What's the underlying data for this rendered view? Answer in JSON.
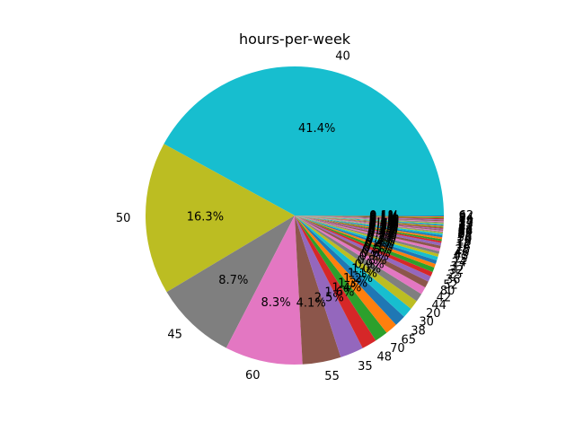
{
  "chart_data": {
    "type": "pie",
    "title": "hours-per-week",
    "start_angle_deg": 0,
    "direction": "counterclockwise",
    "slices": [
      {
        "label": "40",
        "pct": 41.4,
        "pct_label": "41.4%"
      },
      {
        "label": "50",
        "pct": 16.3,
        "pct_label": "16.3%"
      },
      {
        "label": "45",
        "pct": 8.7,
        "pct_label": "8.7%"
      },
      {
        "label": "60",
        "pct": 8.3,
        "pct_label": "8.3%"
      },
      {
        "label": "55",
        "pct": 4.1,
        "pct_label": "4.1%"
      },
      {
        "label": "35",
        "pct": 2.5,
        "pct_label": "2.5%"
      },
      {
        "label": "48",
        "pct": 1.6,
        "pct_label": "1.6%"
      },
      {
        "label": "70",
        "pct": 1.4,
        "pct_label": "1.4%"
      },
      {
        "label": "65",
        "pct": 1.3,
        "pct_label": "1.3%"
      },
      {
        "label": "38",
        "pct": 1.2,
        "pct_label": "1.2%"
      },
      {
        "label": "30",
        "pct": 1.1,
        "pct_label": "1.1%"
      },
      {
        "label": "20",
        "pct": 1.0,
        "pct_label": "1.0%"
      },
      {
        "label": "44",
        "pct": 0.9,
        "pct_label": "0.9%"
      },
      {
        "label": "42",
        "pct": 0.8,
        "pct_label": "0.8%"
      },
      {
        "label": "80",
        "pct": 0.7,
        "pct_label": "0.7%"
      },
      {
        "label": "52",
        "pct": 0.6,
        "pct_label": "0.6%"
      },
      {
        "label": "36",
        "pct": 0.5,
        "pct_label": "0.5%"
      },
      {
        "label": "25",
        "pct": 0.5,
        "pct_label": "0.5%"
      },
      {
        "label": "32",
        "pct": 0.4,
        "pct_label": "0.4%"
      },
      {
        "label": "37",
        "pct": 0.4,
        "pct_label": "0.4%"
      },
      {
        "label": "24",
        "pct": 0.4,
        "pct_label": "0.4%"
      },
      {
        "label": "15",
        "pct": 0.3,
        "pct_label": "0.3%"
      },
      {
        "label": "43",
        "pct": 0.3,
        "pct_label": "0.3%"
      },
      {
        "label": "46",
        "pct": 0.3,
        "pct_label": "0.3%"
      },
      {
        "label": "28",
        "pct": 0.3,
        "pct_label": "0.3%"
      },
      {
        "label": "16",
        "pct": 0.3,
        "pct_label": "0.3%"
      },
      {
        "label": "12",
        "pct": 0.2,
        "pct_label": "0.2%"
      },
      {
        "label": "18",
        "pct": 0.2,
        "pct_label": "0.2%"
      },
      {
        "label": "10",
        "pct": 0.2,
        "pct_label": "0.2%"
      },
      {
        "label": "56",
        "pct": 0.2,
        "pct_label": "0.2%"
      },
      {
        "label": "75",
        "pct": 0.2,
        "pct_label": "0.2%"
      },
      {
        "label": "8",
        "pct": 0.1,
        "pct_label": "0.1%"
      },
      {
        "label": "6",
        "pct": 0.1,
        "pct_label": "0.1%"
      },
      {
        "label": "99",
        "pct": 0.1,
        "pct_label": "0.1%"
      },
      {
        "label": "84",
        "pct": 0.1,
        "pct_label": "0.1%"
      },
      {
        "label": "72",
        "pct": 0.1,
        "pct_label": "0.1%"
      },
      {
        "label": "5",
        "pct": 0.1,
        "pct_label": "0.1%"
      },
      {
        "label": "47",
        "pct": 0.1,
        "pct_label": "0.1%"
      },
      {
        "label": "4",
        "pct": 0.1,
        "pct_label": "0.1%"
      },
      {
        "label": "22",
        "pct": 0.1,
        "pct_label": "0.1%"
      },
      {
        "label": "3",
        "pct": 0.1,
        "pct_label": "0.1%"
      },
      {
        "label": "33",
        "pct": 0.1,
        "pct_label": "0.1%"
      },
      {
        "label": "27",
        "pct": 0.1,
        "pct_label": "0.1%"
      },
      {
        "label": "14",
        "pct": 0.1,
        "pct_label": "0.1%"
      },
      {
        "label": "39",
        "pct": 0.1,
        "pct_label": "0.1%"
      },
      {
        "label": "7",
        "pct": 0.1,
        "pct_label": "0.1%"
      },
      {
        "label": "2",
        "pct": 0.1,
        "pct_label": "0.1%"
      },
      {
        "label": "34",
        "pct": 0.1,
        "pct_label": "0.1%"
      },
      {
        "label": "9",
        "pct": 0.1,
        "pct_label": "0.1%"
      },
      {
        "label": "62",
        "pct": 0.1,
        "pct_label": "0.1%"
      }
    ],
    "colors": [
      "#17becf",
      "#bcbd22",
      "#7f7f7f",
      "#e377c2",
      "#8c564b",
      "#9467bd",
      "#d62728",
      "#2ca02c",
      "#ff7f0e",
      "#1f77b4"
    ]
  }
}
